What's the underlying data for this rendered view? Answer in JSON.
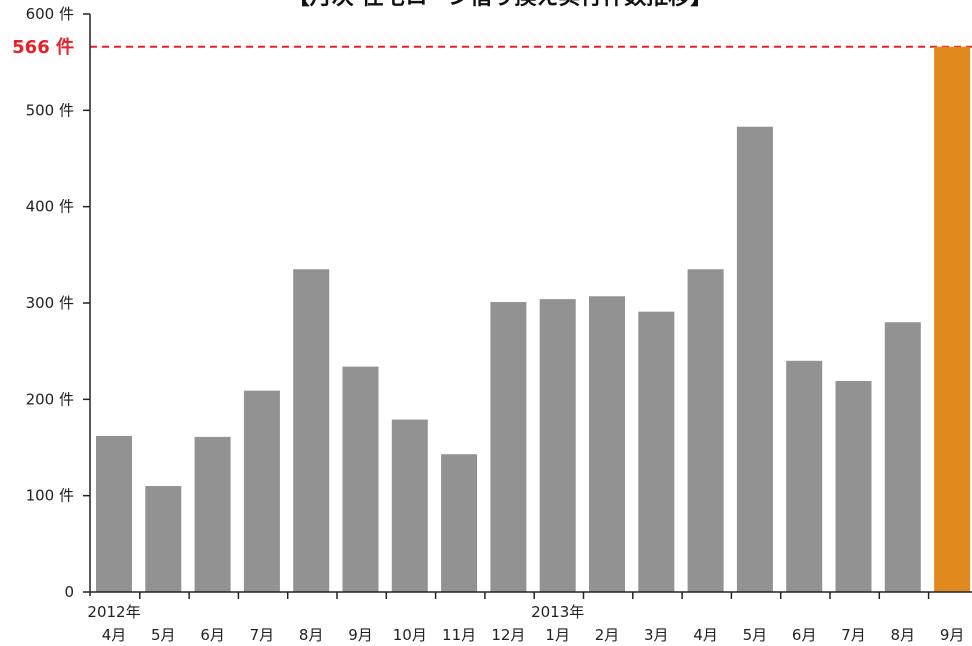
{
  "chart_data": {
    "type": "bar",
    "title": "【月次 住宅ローン借り換え实行件数推移】",
    "categories": [
      "4月",
      "5月",
      "6月",
      "7月",
      "8月",
      "9月",
      "10月",
      "11月",
      "12月",
      "1月",
      "2月",
      "3月",
      "4月",
      "5月",
      "6月",
      "7月",
      "8月",
      "9月"
    ],
    "year_labels": [
      {
        "text": "2012年",
        "category_index": 0
      },
      {
        "text": "2013年",
        "category_index": 9
      }
    ],
    "values": [
      162,
      110,
      161,
      209,
      335,
      234,
      179,
      143,
      301,
      304,
      307,
      291,
      335,
      483,
      240,
      219,
      280,
      566
    ],
    "ylim": [
      0,
      600
    ],
    "yticks": [
      {
        "value": 0,
        "label": "0"
      },
      {
        "value": 100,
        "label": "100 件"
      },
      {
        "value": 200,
        "label": "200 件"
      },
      {
        "value": 300,
        "label": "300 件"
      },
      {
        "value": 400,
        "label": "400 件"
      },
      {
        "value": 500,
        "label": "500 件"
      },
      {
        "value": 600,
        "label": "600 件"
      }
    ],
    "reference_line": {
      "value": 566,
      "label": "566 件",
      "color": "#e8202a"
    },
    "bar_color": "#929292",
    "highlight_color": "#e08a1e",
    "highlight_index": 17,
    "grid": false
  }
}
